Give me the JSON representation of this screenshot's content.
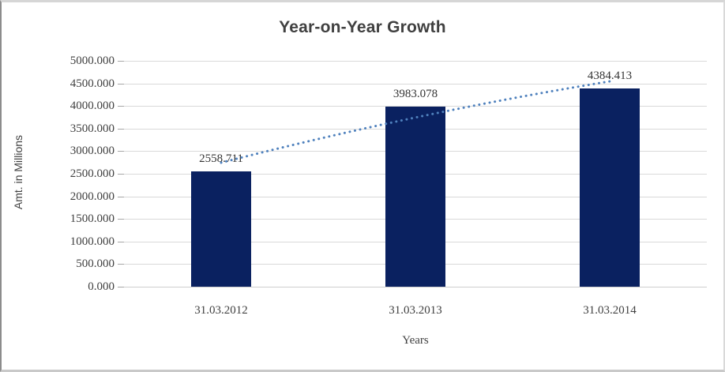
{
  "chart_data": {
    "type": "bar",
    "title": "Year-on-Year Growth",
    "xlabel": "Years",
    "ylabel": "Amt. in Millions",
    "categories": [
      "31.03.2012",
      "31.03.2013",
      "31.03.2014"
    ],
    "values": [
      2558.711,
      3983.078,
      4384.413
    ],
    "data_labels": [
      "2558.711",
      "3983.078",
      "4384.413"
    ],
    "ylim": [
      0,
      5000
    ],
    "ytick_step": 500,
    "ytick_labels": [
      "5000.000",
      "4500.000",
      "4000.000",
      "3500.000",
      "3000.000",
      "2500.000",
      "2000.000",
      "1500.000",
      "1000.000",
      "500.000",
      "0.000"
    ],
    "grid": true,
    "legend": "none",
    "bar_color": "#0a2160",
    "trendline": {
      "style": "dotted",
      "color": "#4F81BD",
      "start_value": 2745,
      "mid_control_value": 3845,
      "end_value": 4545
    },
    "gridline_color": "#d9d9d9",
    "tick_color": "#a6a6a6",
    "text_color": "#404040"
  }
}
